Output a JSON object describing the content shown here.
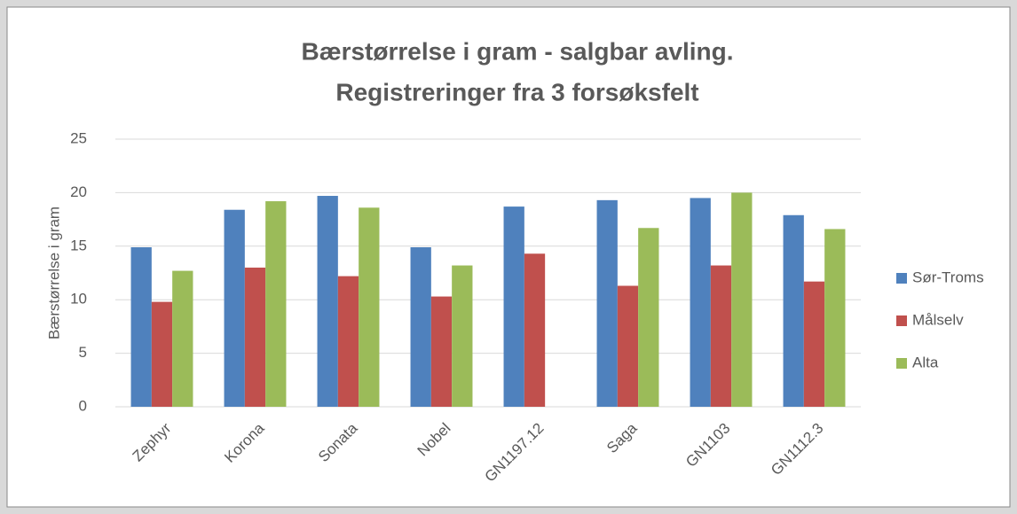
{
  "chart_data": {
    "type": "bar",
    "title": [
      "Bærstørrelse i gram - salgbar avling.",
      "Registreringer fra 3 forsøksfelt"
    ],
    "y_label": "Bærstørrelse i gram",
    "categories": [
      "Zephyr",
      "Korona",
      "Sonata",
      "Nobel",
      "GN1197.12",
      "Saga",
      "GN1103",
      "GN1112.3"
    ],
    "series": [
      {
        "name": "Sør-Troms",
        "color": "#4f81bd",
        "values": [
          14.9,
          18.4,
          19.7,
          14.9,
          18.7,
          19.3,
          19.5,
          17.9
        ]
      },
      {
        "name": "Målselv",
        "color": "#c0504d",
        "values": [
          9.8,
          13.0,
          12.2,
          10.3,
          14.3,
          11.3,
          13.2,
          11.7
        ]
      },
      {
        "name": "Alta",
        "color": "#9bbb59",
        "values": [
          12.7,
          19.2,
          18.6,
          13.2,
          null,
          16.7,
          20.0,
          16.6
        ]
      }
    ],
    "ylim": [
      0,
      25
    ],
    "yticks": [
      0,
      5,
      10,
      15,
      20,
      25
    ],
    "grid": true,
    "legend": "right"
  }
}
